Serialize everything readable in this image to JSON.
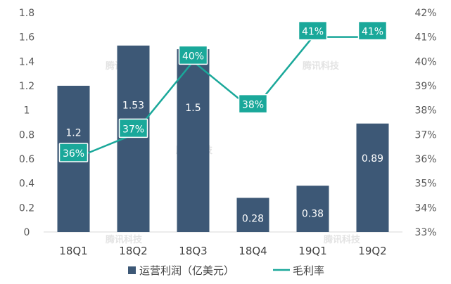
{
  "chart_data": {
    "type": "bar+line",
    "categories": [
      "18Q1",
      "18Q2",
      "18Q3",
      "18Q4",
      "19Q1",
      "19Q2"
    ],
    "series": [
      {
        "name": "运营利润（亿美元）",
        "type": "bar",
        "axis": "left",
        "values": [
          1.2,
          1.53,
          1.5,
          0.28,
          0.38,
          0.89
        ],
        "labels": [
          "1.2",
          "1.53",
          "1.5",
          "0.28",
          "0.38",
          "0.89"
        ],
        "color": "#3d5876"
      },
      {
        "name": "毛利率",
        "type": "line",
        "axis": "right",
        "values": [
          36,
          37,
          40,
          38,
          41,
          41
        ],
        "labels": [
          "36%",
          "37%",
          "40%",
          "38%",
          "41%",
          "41%"
        ],
        "color": "#1aa89a"
      }
    ],
    "left_axis": {
      "ylim": [
        0,
        1.8
      ],
      "ticks": [
        "0",
        "0.2",
        "0.4",
        "0.6",
        "0.8",
        "1",
        "1.2",
        "1.4",
        "1.6",
        "1.8"
      ]
    },
    "right_axis": {
      "ylim": [
        33,
        42
      ],
      "ticks": [
        "33%",
        "34%",
        "35%",
        "36%",
        "37%",
        "38%",
        "39%",
        "40%",
        "41%",
        "42%"
      ]
    },
    "grid": false,
    "legend_position": "bottom",
    "watermark": "腾讯科技"
  }
}
